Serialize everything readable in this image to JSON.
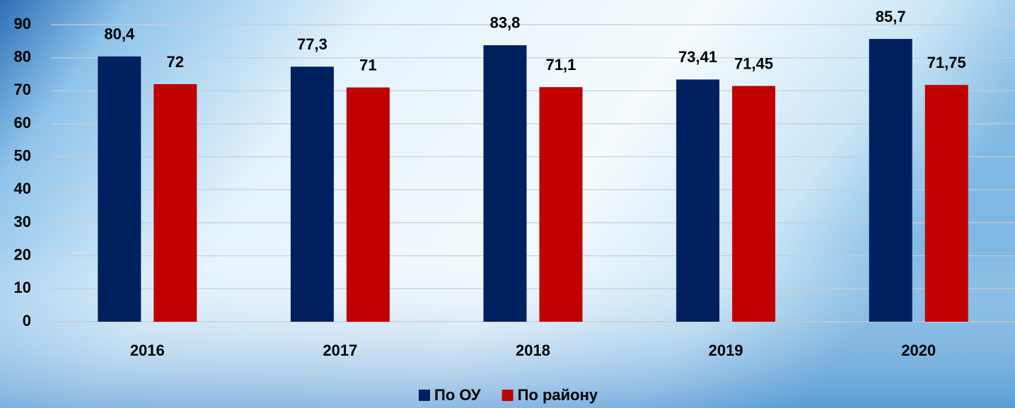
{
  "chart_data": {
    "type": "bar",
    "categories": [
      "2016",
      "2017",
      "2018",
      "2019",
      "2020"
    ],
    "series": [
      {
        "name": "По ОУ",
        "color": "#002060",
        "values": [
          80.4,
          77.3,
          83.8,
          73.41,
          85.7
        ],
        "value_labels": [
          "80,4",
          "77,3",
          "83,8",
          "73,41",
          "85,7"
        ]
      },
      {
        "name": "По району",
        "color": "#c00000",
        "values": [
          72,
          71,
          71.1,
          71.45,
          71.75
        ],
        "value_labels": [
          "72",
          "71",
          "71,1",
          "71,45",
          "71,75"
        ]
      }
    ],
    "ylim": [
      0,
      90
    ],
    "yticks": [
      0,
      10,
      20,
      30,
      40,
      50,
      60,
      70,
      80,
      90
    ],
    "grid": true,
    "legend": "bottom"
  }
}
